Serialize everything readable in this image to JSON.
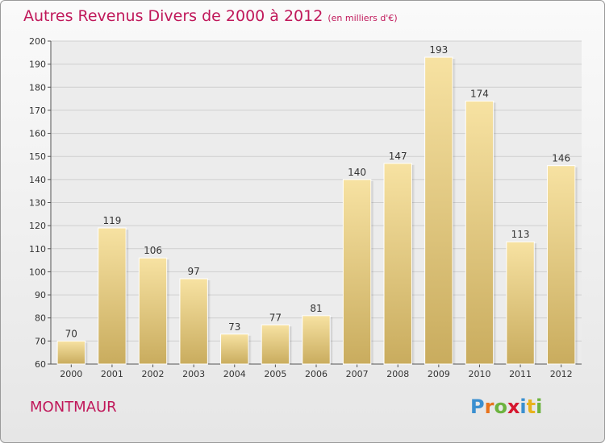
{
  "header": {
    "title": "Autres Revenus Divers de 2000 à 2012",
    "unit": "(en milliers d'€)"
  },
  "footer": {
    "commune": "MONTMAUR",
    "brand": {
      "letters": [
        "P",
        "r",
        "o",
        "x",
        "i",
        "t",
        "i"
      ],
      "colors": [
        "#3a8fd0",
        "#e8731c",
        "#6db33f",
        "#d6172f",
        "#3a8fd0",
        "#e8b21c",
        "#6db33f"
      ]
    }
  },
  "colors": {
    "title": "#c0185a",
    "bar_top": "#f7e2a2",
    "bar_bottom": "#c9ac5e",
    "grid": "#cfcfcf"
  },
  "chart_data": {
    "type": "bar",
    "categories": [
      "2000",
      "2001",
      "2002",
      "2003",
      "2004",
      "2005",
      "2006",
      "2007",
      "2008",
      "2009",
      "2010",
      "2011",
      "2012"
    ],
    "values": [
      70,
      119,
      106,
      97,
      73,
      77,
      81,
      140,
      147,
      193,
      174,
      113,
      146
    ],
    "ylim": [
      60,
      200
    ],
    "yticks": [
      60,
      70,
      80,
      90,
      100,
      110,
      120,
      130,
      140,
      150,
      160,
      170,
      180,
      190,
      200
    ],
    "grid": true,
    "legend": "none"
  }
}
